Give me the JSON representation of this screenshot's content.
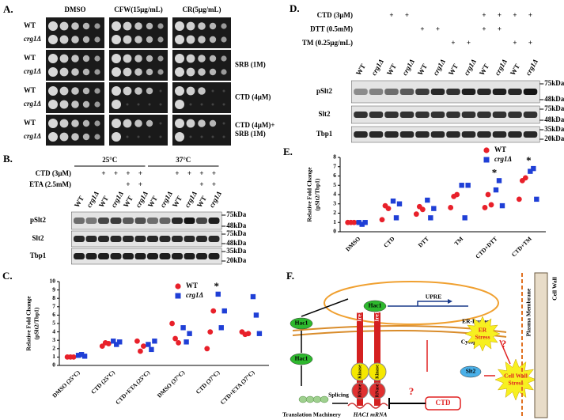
{
  "panels": {
    "a": {
      "label": "A.",
      "columns": [
        "DMSO",
        "CFW(15μg/mL)",
        "CR(5μg/mL)"
      ],
      "rows": [
        {
          "strains": [
            "WT",
            "crg1Δ"
          ]
        },
        {
          "strains": [
            "WT",
            "crg1Δ"
          ],
          "condition": [
            "SRB (1M)"
          ]
        },
        {
          "strains": [
            "WT",
            "crg1Δ"
          ],
          "condition": [
            "CTD (4μM)"
          ]
        },
        {
          "strains": [
            "WT",
            "crg1Δ"
          ],
          "condition": [
            "CTD (4μM)+",
            "SRB (1M)"
          ]
        }
      ]
    },
    "b": {
      "label": "B.",
      "temperatures": [
        "25°C",
        "37°C"
      ],
      "treatments": [
        {
          "name": "CTD (3μM)",
          "signs": [
            null,
            null,
            "+",
            "+",
            "+",
            "+",
            null,
            null,
            "+",
            "+",
            "+",
            "+"
          ]
        },
        {
          "name": "ETA (2.5mM)",
          "signs": [
            null,
            null,
            null,
            null,
            "+",
            "+",
            null,
            null,
            null,
            null,
            "+",
            "+"
          ]
        }
      ],
      "lanes": [
        "WT",
        "crg1Δ",
        "WT",
        "crg1Δ",
        "WT",
        "crg1Δ",
        "WT",
        "crg1Δ",
        "WT",
        "crg1Δ",
        "WT",
        "crg1Δ"
      ],
      "blots": [
        {
          "name": "pSlt2",
          "markers": [
            "75kDa",
            "48kDa"
          ]
        },
        {
          "name": "Slt2",
          "markers": [
            "75kDa",
            "48kDa"
          ]
        },
        {
          "name": "Tbp1",
          "markers": [
            "35kDa",
            "20kDa"
          ]
        }
      ]
    },
    "d": {
      "label": "D.",
      "treatments": [
        {
          "name": "CTD (3μM)",
          "signs": [
            null,
            null,
            "+",
            "+",
            null,
            null,
            null,
            null,
            "+",
            "+",
            "+",
            "+"
          ]
        },
        {
          "name": "DTT (0.5mM)",
          "signs": [
            null,
            null,
            null,
            null,
            "+",
            "+",
            null,
            null,
            "+",
            "+",
            null,
            null
          ]
        },
        {
          "name": "TM (0.25μg/mL)",
          "signs": [
            null,
            null,
            null,
            null,
            null,
            null,
            "+",
            "+",
            null,
            null,
            "+",
            "+"
          ]
        }
      ],
      "lanes": [
        "WT",
        "crg1Δ",
        "WT",
        "crg1Δ",
        "WT",
        "crg1Δ",
        "WT",
        "crg1Δ",
        "WT",
        "crg1Δ",
        "WT",
        "crg1Δ"
      ],
      "blots": [
        {
          "name": "pSlt2",
          "markers": [
            "75kDa",
            "48kDa"
          ]
        },
        {
          "name": "Slt2",
          "markers": [
            "75kDa",
            "48kDa"
          ]
        },
        {
          "name": "Tbp1",
          "markers": [
            "35kDa",
            "20kDa"
          ]
        }
      ]
    },
    "f": {
      "label": "F.",
      "upre": "UPRE",
      "hac1": [
        "Hac1",
        "Hac1",
        "Hac1"
      ],
      "ire1": [
        "Ire1",
        "Ire1"
      ],
      "er_lumen": "ER-Lumen",
      "cytoplasm": "Cytoplasm",
      "kinase": [
        "Kinase",
        "Kinase"
      ],
      "rnase": [
        "RNase",
        "RNase"
      ],
      "splicing": "Splicing",
      "translation": "Translation Machinery",
      "mrna": "HAC1 mRNA",
      "ctd": "CTD",
      "question": [
        "?",
        "?"
      ],
      "er_stress": [
        "ER",
        "Stress"
      ],
      "cell_wall_stress": [
        "Cell Wall",
        "Stress"
      ],
      "slt2": "Slt2",
      "plasma_membrane": "Plasma Membrane",
      "cell_wall": "Cell Wall"
    }
  },
  "chart_data": [
    {
      "type": "scatter",
      "label": "C.",
      "ylabel": [
        "Relative Fold Change",
        "(pSlt2/Tbp1)"
      ],
      "categories": [
        "DMSO (25°C)",
        "CTD (25°C)",
        "CTD+ETA (25°C)",
        "DMSO (37°C)",
        "CTD (37°C)",
        "CTD+ETA (37°C)"
      ],
      "ylim": [
        0,
        10
      ],
      "yticks": [
        0,
        1,
        2,
        3,
        4,
        5,
        6,
        7,
        8,
        9,
        10
      ],
      "legend": "upper right",
      "series": [
        {
          "name": "WT",
          "color": "#e8202a",
          "marker": "circle",
          "values": [
            [
              1,
              1,
              1
            ],
            [
              2.3,
              2.7,
              2.6
            ],
            [
              2.9,
              1.7,
              2.3
            ],
            [
              5,
              3.2,
              2.7
            ],
            [
              2,
              4,
              6.5
            ],
            [
              4,
              3.7,
              3.8
            ]
          ]
        },
        {
          "name": "crg1Δ",
          "color": "#1f3fd6",
          "marker": "square",
          "values": [
            [
              1.2,
              1.3,
              1.1
            ],
            [
              2.9,
              2.5,
              2.8
            ],
            [
              2.5,
              1.9,
              2.9
            ],
            [
              4.5,
              2.8,
              3.8
            ],
            [
              8.5,
              4.5,
              6.5
            ],
            [
              8.2,
              6,
              3.8
            ]
          ]
        }
      ],
      "annotations": [
        "*"
      ]
    },
    {
      "type": "scatter",
      "label": "E.",
      "ylabel": [
        "Relative Fold Change",
        "(pSlt2/Tbp1)"
      ],
      "categories": [
        "DMSO",
        "CTD",
        "DTT",
        "TM",
        "CTD+DTT",
        "CTD+TM"
      ],
      "ylim": [
        0,
        8
      ],
      "yticks": [
        0,
        1,
        2,
        3,
        4,
        5,
        6,
        7,
        8
      ],
      "legend": "upper right",
      "series": [
        {
          "name": "WT",
          "color": "#e8202a",
          "marker": "circle",
          "values": [
            [
              1,
              1,
              1
            ],
            [
              1.3,
              2.8,
              2.5
            ],
            [
              1.9,
              2.7,
              2.4
            ],
            [
              2.6,
              3.8,
              4
            ],
            [
              2.6,
              4,
              2.9
            ],
            [
              3.5,
              5.5,
              5.8
            ]
          ]
        },
        {
          "name": "crg1Δ",
          "color": "#1f3fd6",
          "marker": "square",
          "values": [
            [
              1,
              0.8,
              1
            ],
            [
              3.3,
              1.5,
              3
            ],
            [
              3.4,
              1.5,
              2.5
            ],
            [
              5,
              1.5,
              5
            ],
            [
              4.5,
              5.5,
              2.8
            ],
            [
              6.5,
              6.8,
              3.5
            ]
          ]
        }
      ],
      "annotations": [
        "*",
        "*"
      ]
    }
  ]
}
